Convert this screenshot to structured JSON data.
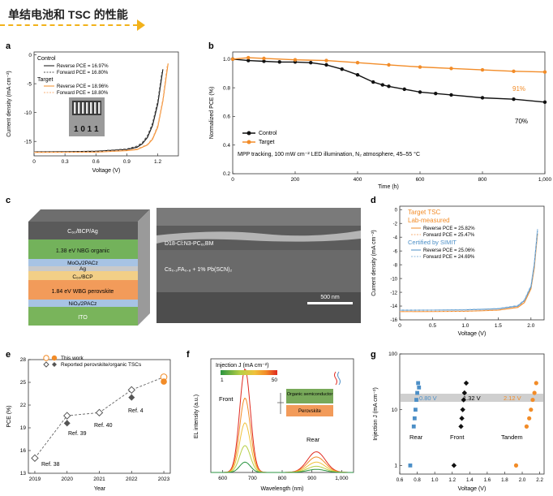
{
  "header": {
    "title": "单结电池和 TSC 的性能"
  },
  "colors": {
    "accent_orange": "#f28c28",
    "line_black": "#111111",
    "blue_cert": "#4c8fc7",
    "header_arrow": "#f2b21b"
  },
  "panels": {
    "a": {
      "label": "a",
      "xlabel": "Voltage (V)",
      "ylabel": "Current density (mA cm⁻²)",
      "xticks": [
        "0",
        "0.3",
        "0.6",
        "0.9",
        "1.2"
      ],
      "yticks": [
        "0",
        "-5",
        "-10",
        "-15"
      ],
      "legend": {
        "control_title": "Control",
        "control_reverse": "Reverse  PCE = 16.97%",
        "control_forward": "Forward  PCE = 16.80%",
        "target_title": "Target",
        "target_reverse": "Reverse  PCE = 18.96%",
        "target_forward": "Forward  PCE = 18.80%"
      },
      "inset_text": "1 0    1 1"
    },
    "b": {
      "label": "b",
      "xlabel": "Time (h)",
      "ylabel": "Normalized PCE (%)",
      "xticks": [
        "0",
        "200",
        "400",
        "600",
        "800",
        "1,000"
      ],
      "yticks": [
        "0.2",
        "0.4",
        "0.6",
        "0.8",
        "1.0"
      ],
      "legend_control": "Control",
      "legend_target": "Target",
      "label_target_end": "91%",
      "label_control_end": "70%",
      "note": "MPP tracking, 100 mW cm⁻² LED illumination, N₂ atmosphere, 45–55 °C"
    },
    "c": {
      "label": "c",
      "layers": [
        "C₆₀/BCP/Ag",
        "1.38 eV NBG organic",
        "MoOₓ/2PACz",
        "Ag",
        "C₆₀/BCP",
        "1.84 eV WBG perovskite",
        "NiOₓ/2PACz",
        "ITO"
      ],
      "sem_label_top": "D18-Cl:N3-PC₆₁BM",
      "sem_label_mid": "Cs₀.₂FA₀.₈ + 1% Pb(SCN)₂",
      "scale_bar": "500 nm"
    },
    "d": {
      "label": "d",
      "xlabel": "Voltage (V)",
      "ylabel": "Current density (mA cm⁻²)",
      "xticks": [
        "0",
        "0.5",
        "1.0",
        "1.5",
        "2.0"
      ],
      "yticks": [
        "0",
        "-2",
        "-4",
        "-6",
        "-8",
        "-10",
        "-12",
        "-14",
        "-16"
      ],
      "legend": {
        "title1": "Target TSC",
        "title2": "Lab-measured",
        "lab_reverse": "Reverse PCE = 25.82%",
        "lab_forward": "Forward PCE = 25.47%",
        "cert_title": "Certified by SIMIT",
        "cert_reverse": "Reverse PCE = 25.06%",
        "cert_forward": "Forward PCE = 24.69%"
      }
    },
    "e": {
      "label": "e",
      "xlabel": "Year",
      "ylabel": "PCE (%)",
      "xticks": [
        "2019",
        "2020",
        "2021",
        "2022",
        "2023"
      ],
      "yticks": [
        "13",
        "16",
        "19",
        "22",
        "25",
        "28"
      ],
      "legend_this": "This work",
      "legend_reported": "Reported perovskite/organic TSCs",
      "refs": [
        "Ref. 38",
        "Ref. 39",
        "Ref. 40",
        "Ref. 4"
      ]
    },
    "f": {
      "label": "f",
      "xlabel": "Wavelength (nm)",
      "ylabel": "EL intensity (a.u.)",
      "xticks": [
        "600",
        "700",
        "800",
        "900",
        "1,000"
      ],
      "colorbar_title": "Injection J (mA cm⁻²)",
      "colorbar_min": "1",
      "colorbar_max": "50",
      "label_front": "Front",
      "label_rear": "Rear",
      "inset_organic": "Organic semiconductor",
      "inset_perovskite": "Perovskite"
    },
    "g": {
      "label": "g",
      "xlabel": "Voltage (V)",
      "ylabel": "Injection J (mA cm⁻²)",
      "xticks": [
        "0.6",
        "0.8",
        "1.0",
        "1.2",
        "1.4",
        "1.6",
        "1.8",
        "2.0",
        "2.2"
      ],
      "yticks": [
        "1",
        "10",
        "100"
      ],
      "band_rear": "0.80 V",
      "band_front": "1.32 V",
      "band_tandem": "2.12 V",
      "label_rear": "Rear",
      "label_front": "Front",
      "label_tandem": "Tandem"
    }
  },
  "chart_data": [
    {
      "type": "line",
      "panel": "a",
      "xlabel": "Voltage (V)",
      "ylabel": "Current density (mA cm⁻²)",
      "xlim": [
        0,
        1.4
      ],
      "ylim": [
        -17.5,
        0.5
      ],
      "series": [
        {
          "name": "Control Reverse",
          "color": "#111111",
          "x": [
            0,
            0.3,
            0.6,
            0.9,
            1.0,
            1.05,
            1.1,
            1.15,
            1.2,
            1.25
          ],
          "y": [
            -16.8,
            -16.78,
            -16.7,
            -16.4,
            -16.0,
            -15.4,
            -14.3,
            -12.2,
            -8.5,
            -2.5
          ]
        },
        {
          "name": "Control Forward",
          "color": "#555555",
          "x": [
            0,
            0.3,
            0.6,
            0.9,
            1.0,
            1.05,
            1.1,
            1.15,
            1.2,
            1.24
          ],
          "y": [
            -16.8,
            -16.77,
            -16.68,
            -16.3,
            -15.8,
            -15.2,
            -14.0,
            -11.8,
            -8.0,
            -3.0
          ]
        },
        {
          "name": "Target Reverse",
          "color": "#f28c28",
          "x": [
            0,
            0.3,
            0.6,
            0.9,
            1.0,
            1.1,
            1.15,
            1.2,
            1.25,
            1.3
          ],
          "y": [
            -16.9,
            -16.88,
            -16.85,
            -16.6,
            -16.4,
            -15.6,
            -14.6,
            -12.5,
            -8.0,
            -1.5
          ]
        },
        {
          "name": "Target Forward",
          "color": "#f7b27a",
          "x": [
            0,
            0.3,
            0.6,
            0.9,
            1.0,
            1.1,
            1.15,
            1.2,
            1.25,
            1.29
          ],
          "y": [
            -16.9,
            -16.87,
            -16.83,
            -16.5,
            -16.3,
            -15.5,
            -14.4,
            -12.2,
            -7.6,
            -2.0
          ]
        }
      ]
    },
    {
      "type": "line",
      "panel": "b",
      "xlabel": "Time (h)",
      "ylabel": "Normalized PCE (%)",
      "xlim": [
        0,
        1000
      ],
      "ylim": [
        0.2,
        1.05
      ],
      "series": [
        {
          "name": "Control",
          "color": "#111111",
          "x": [
            0,
            50,
            100,
            150,
            200,
            250,
            300,
            350,
            400,
            450,
            480,
            500,
            550,
            600,
            650,
            700,
            800,
            900,
            1000
          ],
          "y": [
            1.0,
            0.99,
            0.985,
            0.98,
            0.98,
            0.975,
            0.96,
            0.93,
            0.89,
            0.84,
            0.82,
            0.81,
            0.79,
            0.77,
            0.76,
            0.75,
            0.73,
            0.72,
            0.7
          ]
        },
        {
          "name": "Target",
          "color": "#f28c28",
          "x": [
            0,
            50,
            100,
            200,
            300,
            400,
            500,
            600,
            700,
            800,
            900,
            1000
          ],
          "y": [
            1.0,
            1.01,
            1.005,
            0.995,
            0.99,
            0.975,
            0.96,
            0.945,
            0.935,
            0.925,
            0.915,
            0.91
          ]
        }
      ]
    },
    {
      "type": "line",
      "panel": "d",
      "xlabel": "Voltage (V)",
      "ylabel": "Current density (mA cm⁻²)",
      "xlim": [
        0,
        2.2
      ],
      "ylim": [
        -16,
        0.5
      ],
      "series": [
        {
          "name": "Lab Reverse PCE = 25.82%",
          "color": "#f28c28",
          "x": [
            0,
            0.5,
            1.0,
            1.5,
            1.8,
            1.9,
            2.0,
            2.05,
            2.1
          ],
          "y": [
            -14.8,
            -14.79,
            -14.75,
            -14.6,
            -14.2,
            -13.5,
            -11.5,
            -8.5,
            -3.5
          ]
        },
        {
          "name": "Lab Forward PCE = 25.47%",
          "color": "#f7b27a",
          "x": [
            0,
            0.5,
            1.0,
            1.5,
            1.8,
            1.9,
            2.0,
            2.05,
            2.1
          ],
          "y": [
            -14.8,
            -14.78,
            -14.73,
            -14.55,
            -14.1,
            -13.3,
            -11.3,
            -8.2,
            -3.2
          ]
        },
        {
          "name": "Cert Reverse PCE = 25.06%",
          "color": "#4c8fc7",
          "x": [
            0,
            0.5,
            1.0,
            1.5,
            1.8,
            1.9,
            2.0,
            2.05,
            2.1
          ],
          "y": [
            -14.6,
            -14.58,
            -14.55,
            -14.4,
            -14.0,
            -13.2,
            -11.2,
            -8.0,
            -3.0
          ]
        },
        {
          "name": "Cert Forward PCE = 24.69%",
          "color": "#8db9de",
          "x": [
            0,
            0.5,
            1.0,
            1.5,
            1.8,
            1.9,
            2.0,
            2.05,
            2.1
          ],
          "y": [
            -14.6,
            -14.57,
            -14.52,
            -14.35,
            -13.9,
            -13.1,
            -11.0,
            -7.8,
            -2.8
          ]
        }
      ]
    },
    {
      "type": "scatter",
      "panel": "e",
      "xlabel": "Year",
      "ylabel": "PCE (%)",
      "xlim": [
        2018.8,
        2023.2
      ],
      "ylim": [
        13,
        28
      ],
      "series": [
        {
          "name": "Reported perovskite/organic TSCs (open)",
          "color": "#555555",
          "x": [
            2019,
            2020,
            2021,
            2022,
            2023
          ],
          "y": [
            15.0,
            20.6,
            21.0,
            24.0,
            25.7
          ]
        },
        {
          "name": "Reported perovskite/organic TSCs (filled)",
          "color": "#555555",
          "x": [
            2020,
            2022
          ],
          "y": [
            19.6,
            23.0
          ]
        },
        {
          "name": "This work",
          "color": "#f28c28",
          "x": [
            2023
          ],
          "y": [
            25.1
          ]
        }
      ]
    },
    {
      "type": "line",
      "panel": "f",
      "xlabel": "Wavelength (nm)",
      "ylabel": "EL intensity (a.u.)",
      "xlim": [
        560,
        1040
      ],
      "ylim": [
        0,
        1.1
      ],
      "series": [
        {
          "name": "J=50",
          "color": "#e0281e",
          "peaks": [
            [
              675,
              1.0
            ],
            [
              915,
              0.2
            ]
          ]
        },
        {
          "name": "J=30",
          "color": "#f28c28",
          "peaks": [
            [
              675,
              0.72
            ],
            [
              915,
              0.15
            ]
          ]
        },
        {
          "name": "J=15",
          "color": "#f0c23c",
          "peaks": [
            [
              675,
              0.48
            ],
            [
              915,
              0.1
            ]
          ]
        },
        {
          "name": "J=5",
          "color": "#b7cf45",
          "peaks": [
            [
              675,
              0.26
            ],
            [
              915,
              0.06
            ]
          ]
        },
        {
          "name": "J=1",
          "color": "#2a9440",
          "peaks": [
            [
              675,
              0.1
            ],
            [
              915,
              0.03
            ]
          ]
        }
      ]
    },
    {
      "type": "scatter",
      "panel": "g",
      "xlabel": "Voltage (V)",
      "ylabel": "Injection J (mA cm⁻²)",
      "xlim": [
        0.6,
        2.25
      ],
      "ylim": [
        0.7,
        100
      ],
      "yscale": "log",
      "series": [
        {
          "name": "Rear",
          "color": "#4c8fc7",
          "x": [
            0.72,
            0.76,
            0.77,
            0.78,
            0.79,
            0.8,
            0.81,
            0.82
          ],
          "y": [
            1.0,
            5.0,
            7.0,
            10.0,
            15.0,
            20.0,
            30.0,
            25.0
          ]
        },
        {
          "name": "Front",
          "color": "#111111",
          "x": [
            1.22,
            1.3,
            1.31,
            1.32,
            1.33,
            1.34,
            1.36
          ],
          "y": [
            1.0,
            5.0,
            7.0,
            10.0,
            15.0,
            20.0,
            30.0
          ]
        },
        {
          "name": "Tandem",
          "color": "#f28c28",
          "x": [
            1.93,
            2.05,
            2.08,
            2.1,
            2.12,
            2.14,
            2.16
          ],
          "y": [
            1.0,
            5.0,
            7.0,
            10.0,
            15.0,
            20.0,
            30.0
          ]
        }
      ]
    }
  ]
}
